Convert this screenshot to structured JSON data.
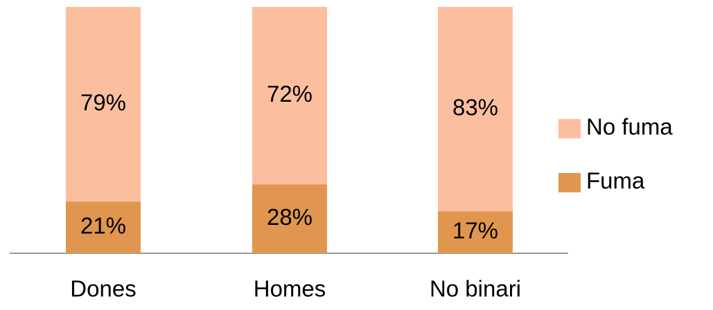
{
  "chart_data": {
    "type": "stacked_bar",
    "categories": [
      "Dones",
      "Homes",
      "No binari"
    ],
    "series": [
      {
        "name": "Fuma",
        "color": "#e0964f",
        "values": [
          21,
          28,
          17
        ],
        "value_labels": [
          "21%",
          "28%",
          "17%"
        ]
      },
      {
        "name": "No fuma",
        "color": "#fbbfa0",
        "values": [
          79,
          72,
          83
        ],
        "value_labels": [
          "79%",
          "72%",
          "83%"
        ]
      }
    ],
    "ylim": [
      0,
      100
    ],
    "legend": "right"
  }
}
